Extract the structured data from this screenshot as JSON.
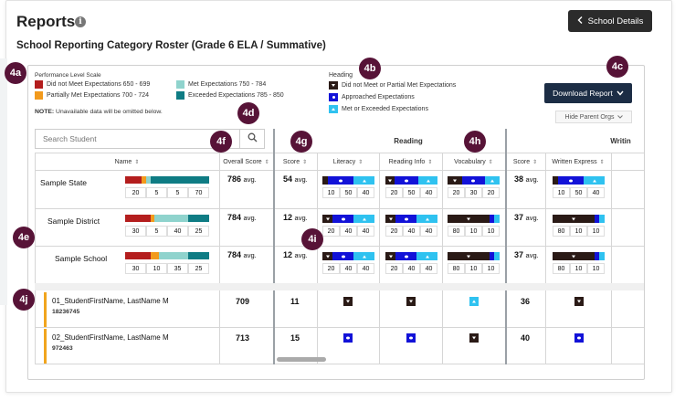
{
  "page": {
    "title": "Reports",
    "info_glyph": "i",
    "details_button": "School Details",
    "roster_title": "School Reporting Category Roster (Grade 6 ELA / Summative)"
  },
  "legend": {
    "title": "Performance Level Scale",
    "items": [
      {
        "label": "Did not Meet Expectations 650 - 699",
        "color": "#b41e1e"
      },
      {
        "label": "Partially Met Expectations 700 - 724",
        "color": "#f29a1d"
      },
      {
        "label": "Met Expectations 750 - 784",
        "color": "#8fd3cd"
      },
      {
        "label": "Exceeded Expectations 785 - 850",
        "color": "#0f7c84"
      }
    ],
    "note_bold": "NOTE:",
    "note_text": " Unavailable data will be omitted below."
  },
  "heading_legend": {
    "title": "Heading",
    "items": [
      {
        "label": "Did not Meet or Partial Met  Expectations",
        "icon": "down-triangle-icon"
      },
      {
        "label": "Approached  Expectations",
        "icon": "dot-icon"
      },
      {
        "label": "Met or Exceeded  Expectations",
        "icon": "up-triangle-icon"
      }
    ]
  },
  "toolbar": {
    "download": "Download Report",
    "hide_parents": "Hide Parent Orgs"
  },
  "search": {
    "placeholder": "Search Student"
  },
  "columns": {
    "name": "Name",
    "overall": "Overall Score",
    "reading_group": "Reading",
    "writing_group": "Writin",
    "score": "Score",
    "literacy": "Literacy",
    "reading_info": "Reading Info",
    "vocabulary": "Vocabulary",
    "score2": "Score",
    "written_express": "Written Express"
  },
  "summary_rows": [
    {
      "name": "Sample State",
      "pl": [
        20,
        5,
        5,
        70
      ],
      "overall": "786",
      "suffix": "avg.",
      "reading": "54",
      "lit": [
        10,
        50,
        40
      ],
      "rinfo": [
        20,
        50,
        40
      ],
      "vocab": [
        20,
        30,
        20
      ],
      "writing": "38",
      "we": [
        10,
        50,
        40
      ]
    },
    {
      "name": "Sample District",
      "pl": [
        30,
        5,
        40,
        25
      ],
      "overall": "784",
      "suffix": "avg.",
      "reading": "12",
      "lit": [
        20,
        40,
        40
      ],
      "rinfo": [
        20,
        40,
        40
      ],
      "vocab": [
        80,
        10,
        10
      ],
      "writing": "37",
      "we": [
        80,
        10,
        10
      ]
    },
    {
      "name": "Sample School",
      "pl": [
        30,
        10,
        35,
        25
      ],
      "overall": "784",
      "suffix": "avg.",
      "reading": "12",
      "lit": [
        20,
        40,
        40
      ],
      "rinfo": [
        20,
        40,
        40
      ],
      "vocab": [
        80,
        10,
        10
      ],
      "writing": "37",
      "we": [
        80,
        10,
        10
      ]
    }
  ],
  "students": [
    {
      "name": "01_StudentFirstName, LastName M",
      "id": "18236745",
      "overall": "709",
      "reading": "11",
      "lit": "down",
      "rinfo": "down",
      "vocab": "up",
      "writing": "36",
      "we": "down"
    },
    {
      "name": "02_StudentFirstName, LastName M",
      "id": "972463",
      "overall": "713",
      "reading": "15",
      "lit": "dot",
      "rinfo": "dot",
      "vocab": "down",
      "writing": "40",
      "we": "dot"
    }
  ],
  "badges": [
    "4a",
    "4b",
    "4c",
    "4d",
    "4e",
    "4f",
    "4g",
    "4h",
    "4i",
    "4j"
  ],
  "colors": {
    "down": "#2a1a16",
    "dot": "#1212d8",
    "up": "#2fc2f0",
    "badge": "#571337"
  }
}
